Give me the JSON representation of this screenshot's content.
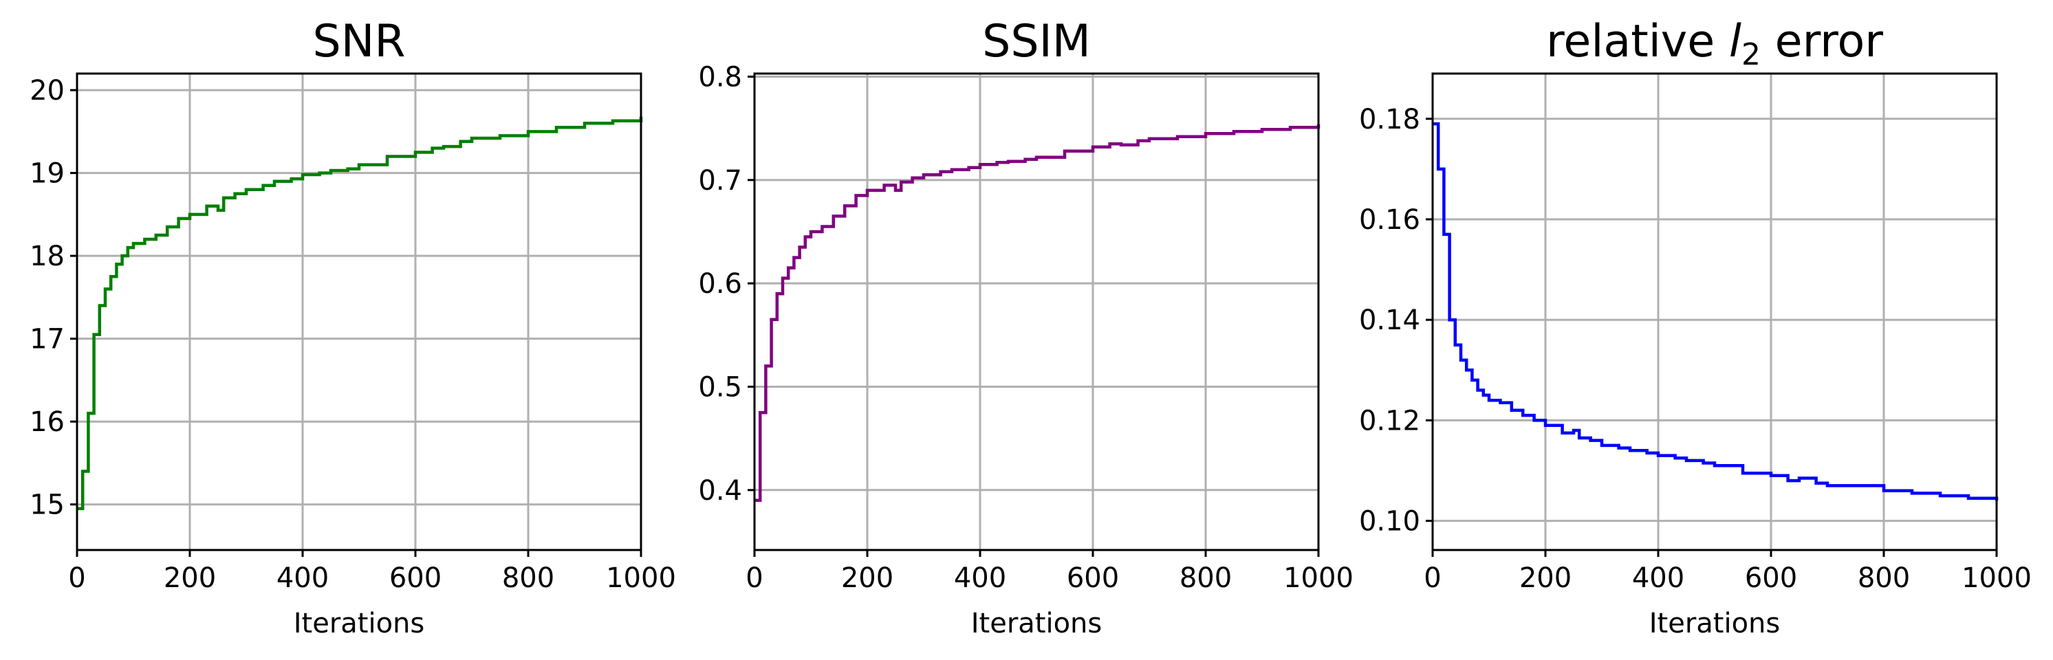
{
  "chart_data": [
    {
      "type": "line",
      "title": "SNR",
      "xlabel": "Iterations",
      "ylabel": "",
      "xlim": [
        0,
        1000
      ],
      "ylim": [
        14.45,
        20.2
      ],
      "xticks": [
        0,
        200,
        400,
        600,
        800,
        1000
      ],
      "yticks": [
        15,
        16,
        17,
        18,
        19,
        20
      ],
      "xtick_labels": [
        "0",
        "200",
        "400",
        "600",
        "800",
        "1000"
      ],
      "ytick_labels": [
        "15",
        "16",
        "17",
        "18",
        "19",
        "20"
      ],
      "grid": true,
      "series": [
        {
          "name": "SNR",
          "color": "#008000",
          "step": true,
          "x": [
            0,
            10,
            20,
            30,
            40,
            50,
            60,
            70,
            80,
            90,
            100,
            120,
            140,
            160,
            180,
            200,
            230,
            250,
            260,
            280,
            300,
            330,
            350,
            380,
            400,
            430,
            450,
            480,
            500,
            550,
            600,
            630,
            650,
            680,
            700,
            750,
            800,
            850,
            900,
            950,
            1000
          ],
          "values": [
            14.95,
            15.4,
            16.1,
            17.05,
            17.4,
            17.6,
            17.75,
            17.9,
            18.0,
            18.1,
            18.15,
            18.2,
            18.25,
            18.35,
            18.45,
            18.5,
            18.6,
            18.55,
            18.7,
            18.75,
            18.8,
            18.85,
            18.9,
            18.93,
            18.98,
            19.0,
            19.03,
            19.05,
            19.1,
            19.2,
            19.25,
            19.3,
            19.32,
            19.38,
            19.42,
            19.45,
            19.5,
            19.55,
            19.6,
            19.63,
            19.68
          ]
        }
      ]
    },
    {
      "type": "line",
      "title": "SSIM",
      "xlabel": "Iterations",
      "ylabel": "",
      "xlim": [
        0,
        1000
      ],
      "ylim": [
        0.342,
        0.803
      ],
      "xticks": [
        0,
        200,
        400,
        600,
        800,
        1000
      ],
      "yticks": [
        0.4,
        0.5,
        0.6,
        0.7,
        0.8
      ],
      "xtick_labels": [
        "0",
        "200",
        "400",
        "600",
        "800",
        "1000"
      ],
      "ytick_labels": [
        "0.4",
        "0.5",
        "0.6",
        "0.7",
        "0.8"
      ],
      "grid": true,
      "series": [
        {
          "name": "SSIM",
          "color": "#800080",
          "step": true,
          "x": [
            0,
            10,
            20,
            30,
            40,
            50,
            60,
            70,
            80,
            90,
            100,
            120,
            140,
            160,
            180,
            200,
            230,
            250,
            260,
            280,
            300,
            330,
            350,
            380,
            400,
            430,
            450,
            480,
            500,
            550,
            600,
            630,
            650,
            680,
            700,
            750,
            800,
            850,
            900,
            950,
            1000
          ],
          "values": [
            0.39,
            0.475,
            0.52,
            0.565,
            0.59,
            0.605,
            0.615,
            0.625,
            0.635,
            0.645,
            0.65,
            0.655,
            0.665,
            0.675,
            0.685,
            0.69,
            0.695,
            0.69,
            0.698,
            0.702,
            0.705,
            0.708,
            0.71,
            0.712,
            0.715,
            0.717,
            0.718,
            0.72,
            0.722,
            0.728,
            0.732,
            0.735,
            0.734,
            0.738,
            0.74,
            0.742,
            0.745,
            0.747,
            0.749,
            0.751,
            0.754
          ]
        }
      ]
    },
    {
      "type": "line",
      "title": "relative l2 error",
      "title_parts": {
        "prefix": "relative ",
        "var": "l",
        "sub": "2",
        "suffix": " error"
      },
      "xlabel": "Iterations",
      "ylabel": "",
      "xlim": [
        0,
        1000
      ],
      "ylim": [
        0.0942,
        0.189
      ],
      "xticks": [
        0,
        200,
        400,
        600,
        800,
        1000
      ],
      "yticks": [
        0.1,
        0.12,
        0.14,
        0.16,
        0.18
      ],
      "xtick_labels": [
        "0",
        "200",
        "400",
        "600",
        "800",
        "1000"
      ],
      "ytick_labels": [
        "0.10",
        "0.12",
        "0.14",
        "0.16",
        "0.18"
      ],
      "grid": true,
      "series": [
        {
          "name": "relative l2 error",
          "color": "#0000ff",
          "step": true,
          "x": [
            0,
            10,
            20,
            30,
            40,
            50,
            60,
            70,
            80,
            90,
            100,
            120,
            140,
            160,
            180,
            200,
            230,
            250,
            260,
            280,
            300,
            330,
            350,
            380,
            400,
            430,
            450,
            480,
            500,
            550,
            600,
            630,
            650,
            680,
            700,
            750,
            800,
            850,
            900,
            950,
            1000
          ],
          "values": [
            0.179,
            0.17,
            0.157,
            0.14,
            0.135,
            0.132,
            0.13,
            0.128,
            0.126,
            0.125,
            0.124,
            0.1235,
            0.122,
            0.121,
            0.12,
            0.119,
            0.1175,
            0.118,
            0.1165,
            0.116,
            0.115,
            0.1145,
            0.114,
            0.1135,
            0.113,
            0.1125,
            0.112,
            0.1115,
            0.111,
            0.1095,
            0.109,
            0.108,
            0.1085,
            0.1075,
            0.107,
            0.107,
            0.106,
            0.1055,
            0.105,
            0.1045,
            0.104
          ]
        }
      ]
    }
  ]
}
